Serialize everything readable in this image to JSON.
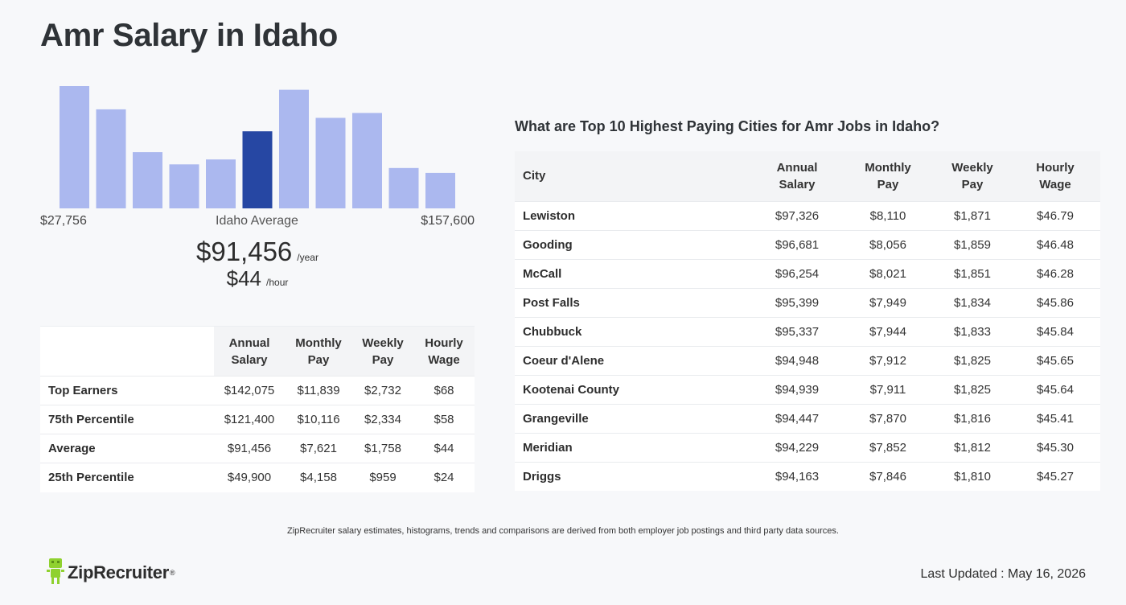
{
  "page": {
    "title": "Amr Salary in Idaho",
    "disclaimer": "ZipRecruiter salary estimates, histograms, trends and comparisons are derived from both employer job postings and third party data sources.",
    "last_updated": "Last Updated : May 16, 2026",
    "logo_text": "ZipRecruiter"
  },
  "summary": {
    "range_min": "$27,756",
    "range_label": "Idaho Average",
    "range_max": "$157,600",
    "annual": "$91,456",
    "annual_unit": "/year",
    "hourly": "$44",
    "hourly_unit": "/hour"
  },
  "chart_data": {
    "type": "bar",
    "categories": [
      "1",
      "2",
      "3",
      "4",
      "5",
      "6",
      "7",
      "8",
      "9",
      "10",
      "11"
    ],
    "values": [
      100,
      81,
      46,
      36,
      40,
      63,
      97,
      74,
      78,
      33,
      29
    ],
    "highlight_index": 5,
    "colors": {
      "bar": "#abb8ef",
      "highlight": "#2647a3"
    },
    "xlim_labels": [
      "$27,756",
      "$157,600"
    ],
    "center_label": "Idaho Average"
  },
  "percentile_table": {
    "headers": [
      "",
      "Annual\nSalary",
      "Monthly\nPay",
      "Weekly\nPay",
      "Hourly\nWage"
    ],
    "header_lines": [
      [
        "",
        ""
      ],
      [
        "Annual",
        "Salary"
      ],
      [
        "Monthly",
        "Pay"
      ],
      [
        "Weekly",
        "Pay"
      ],
      [
        "Hourly",
        "Wage"
      ]
    ],
    "rows": [
      [
        "Top Earners",
        "$142,075",
        "$11,839",
        "$2,732",
        "$68"
      ],
      [
        "75th Percentile",
        "$121,400",
        "$10,116",
        "$2,334",
        "$58"
      ],
      [
        "Average",
        "$91,456",
        "$7,621",
        "$1,758",
        "$44"
      ],
      [
        "25th Percentile",
        "$49,900",
        "$4,158",
        "$959",
        "$24"
      ]
    ]
  },
  "cities": {
    "title": "What are Top 10 Highest Paying Cities for Amr Jobs in Idaho?",
    "header_lines": [
      [
        "City"
      ],
      [
        "Annual",
        "Salary"
      ],
      [
        "Monthly",
        "Pay"
      ],
      [
        "Weekly",
        "Pay"
      ],
      [
        "Hourly",
        "Wage"
      ]
    ],
    "rows": [
      [
        "Lewiston",
        "$97,326",
        "$8,110",
        "$1,871",
        "$46.79"
      ],
      [
        "Gooding",
        "$96,681",
        "$8,056",
        "$1,859",
        "$46.48"
      ],
      [
        "McCall",
        "$96,254",
        "$8,021",
        "$1,851",
        "$46.28"
      ],
      [
        "Post Falls",
        "$95,399",
        "$7,949",
        "$1,834",
        "$45.86"
      ],
      [
        "Chubbuck",
        "$95,337",
        "$7,944",
        "$1,833",
        "$45.84"
      ],
      [
        "Coeur d'Alene",
        "$94,948",
        "$7,912",
        "$1,825",
        "$45.65"
      ],
      [
        "Kootenai County",
        "$94,939",
        "$7,911",
        "$1,825",
        "$45.64"
      ],
      [
        "Grangeville",
        "$94,447",
        "$7,870",
        "$1,816",
        "$45.41"
      ],
      [
        "Meridian",
        "$94,229",
        "$7,852",
        "$1,812",
        "$45.30"
      ],
      [
        "Driggs",
        "$94,163",
        "$7,846",
        "$1,810",
        "$45.27"
      ]
    ]
  }
}
